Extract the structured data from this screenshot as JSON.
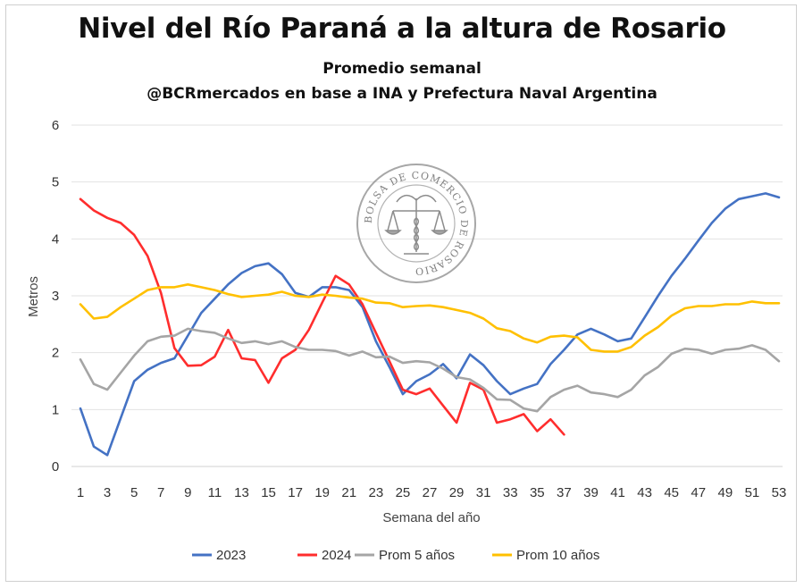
{
  "header": {
    "title": "Nivel del Río Paraná a la altura de Rosario",
    "subtitle": "Promedio semanal",
    "source": "@BCRmercados en base a INA y Prefectura Naval Argentina"
  },
  "watermark": {
    "text": "BOLSA DE COMERCIO DE ROSARIO",
    "icon": "scales-caduceus-seal"
  },
  "chart_data": {
    "type": "line",
    "title": "Nivel del Río Paraná a la altura de Rosario",
    "subtitle": "Promedio semanal",
    "xlabel": "Semana del año",
    "ylabel": "Metros",
    "xlim": [
      1,
      53
    ],
    "ylim": [
      0,
      6
    ],
    "x_ticks": [
      1,
      3,
      5,
      7,
      9,
      11,
      13,
      15,
      17,
      19,
      21,
      23,
      25,
      27,
      29,
      31,
      33,
      35,
      37,
      39,
      41,
      43,
      45,
      47,
      49,
      51,
      53
    ],
    "y_ticks": [
      0,
      1,
      2,
      3,
      4,
      5,
      6
    ],
    "grid": "horizontal",
    "legend_position": "bottom",
    "series": [
      {
        "name": "2023",
        "color": "#4472C4",
        "x": [
          1,
          2,
          3,
          4,
          5,
          6,
          7,
          8,
          9,
          10,
          11,
          12,
          13,
          14,
          15,
          16,
          17,
          18,
          19,
          20,
          21,
          22,
          23,
          24,
          25,
          26,
          27,
          28,
          29,
          30,
          31,
          32,
          33,
          34,
          35,
          36,
          37,
          38,
          39,
          40,
          41,
          42,
          43,
          44,
          45,
          46,
          47,
          48,
          49,
          50,
          51,
          52,
          53
        ],
        "values": [
          1.02,
          0.35,
          0.2,
          0.85,
          1.5,
          1.7,
          1.82,
          1.9,
          2.3,
          2.7,
          2.95,
          3.2,
          3.4,
          3.52,
          3.57,
          3.38,
          3.05,
          2.98,
          3.15,
          3.15,
          3.1,
          2.8,
          2.2,
          1.75,
          1.27,
          1.5,
          1.62,
          1.8,
          1.55,
          1.97,
          1.78,
          1.5,
          1.27,
          1.37,
          1.45,
          1.8,
          2.05,
          2.32,
          2.42,
          2.32,
          2.2,
          2.25,
          2.62,
          3.0,
          3.35,
          3.65,
          3.97,
          4.28,
          4.53,
          4.7,
          4.75,
          4.8,
          4.73
        ]
      },
      {
        "name": "2024",
        "color": "#FF2D2D",
        "x": [
          1,
          2,
          3,
          4,
          5,
          6,
          7,
          8,
          9,
          10,
          11,
          12,
          13,
          14,
          15,
          16,
          17,
          18,
          19,
          20,
          21,
          22,
          23,
          24,
          25,
          26,
          27,
          28,
          29,
          30,
          31,
          32,
          33,
          34,
          35,
          36,
          37
        ],
        "values": [
          4.7,
          4.5,
          4.37,
          4.28,
          4.07,
          3.7,
          3.05,
          2.08,
          1.77,
          1.78,
          1.93,
          2.4,
          1.9,
          1.87,
          1.47,
          1.9,
          2.05,
          2.4,
          2.88,
          3.35,
          3.2,
          2.85,
          2.35,
          1.85,
          1.35,
          1.27,
          1.37,
          1.07,
          0.77,
          1.47,
          1.35,
          0.77,
          0.83,
          0.92,
          0.62,
          0.83,
          0.56
        ]
      },
      {
        "name": "Prom 5 años",
        "color": "#A5A5A5",
        "x": [
          1,
          2,
          3,
          4,
          5,
          6,
          7,
          8,
          9,
          10,
          11,
          12,
          13,
          14,
          15,
          16,
          17,
          18,
          19,
          20,
          21,
          22,
          23,
          24,
          25,
          26,
          27,
          28,
          29,
          30,
          31,
          32,
          33,
          34,
          35,
          36,
          37,
          38,
          39,
          40,
          41,
          42,
          43,
          44,
          45,
          46,
          47,
          48,
          49,
          50,
          51,
          52,
          53
        ],
        "values": [
          1.88,
          1.45,
          1.35,
          1.65,
          1.95,
          2.2,
          2.28,
          2.3,
          2.42,
          2.38,
          2.35,
          2.25,
          2.17,
          2.2,
          2.15,
          2.2,
          2.1,
          2.05,
          2.05,
          2.03,
          1.95,
          2.02,
          1.92,
          1.93,
          1.82,
          1.85,
          1.83,
          1.72,
          1.57,
          1.53,
          1.38,
          1.18,
          1.17,
          1.02,
          0.97,
          1.22,
          1.35,
          1.42,
          1.3,
          1.27,
          1.22,
          1.35,
          1.6,
          1.75,
          1.98,
          2.07,
          2.05,
          1.98,
          2.05,
          2.07,
          2.13,
          2.05,
          1.85
        ]
      },
      {
        "name": "Prom 10 años",
        "color": "#FFC000",
        "x": [
          1,
          2,
          3,
          4,
          5,
          6,
          7,
          8,
          9,
          10,
          11,
          12,
          13,
          14,
          15,
          16,
          17,
          18,
          19,
          20,
          21,
          22,
          23,
          24,
          25,
          26,
          27,
          28,
          29,
          30,
          31,
          32,
          33,
          34,
          35,
          36,
          37,
          38,
          39,
          40,
          41,
          42,
          43,
          44,
          45,
          46,
          47,
          48,
          49,
          50,
          51,
          52,
          53
        ],
        "values": [
          2.85,
          2.6,
          2.63,
          2.8,
          2.95,
          3.1,
          3.15,
          3.15,
          3.2,
          3.15,
          3.1,
          3.03,
          2.98,
          3.0,
          3.02,
          3.07,
          3.0,
          2.98,
          3.02,
          3.0,
          2.97,
          2.95,
          2.88,
          2.87,
          2.8,
          2.82,
          2.83,
          2.8,
          2.75,
          2.7,
          2.6,
          2.43,
          2.38,
          2.25,
          2.18,
          2.28,
          2.3,
          2.27,
          2.05,
          2.02,
          2.02,
          2.1,
          2.3,
          2.45,
          2.65,
          2.78,
          2.82,
          2.82,
          2.85,
          2.85,
          2.9,
          2.87,
          2.87
        ]
      }
    ]
  }
}
